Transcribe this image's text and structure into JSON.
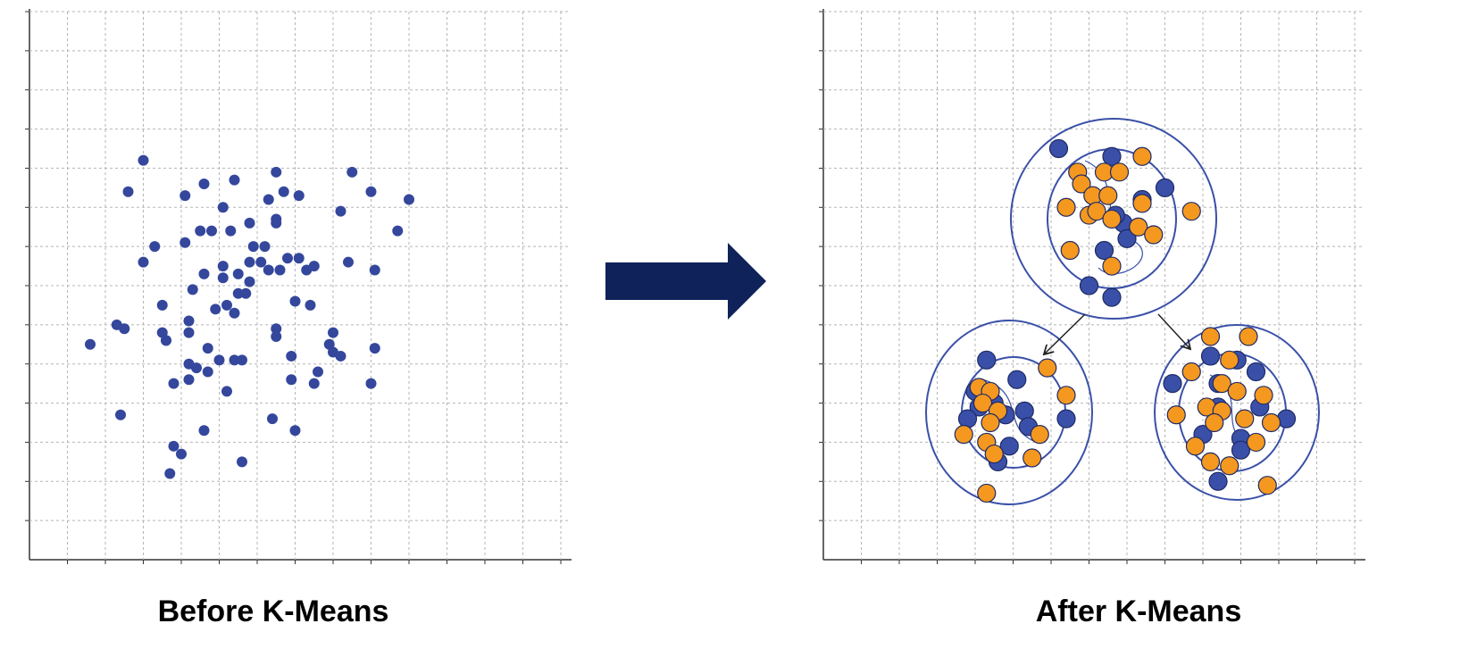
{
  "chart_data": [
    {
      "type": "scatter",
      "title": "Before K-Means",
      "xlim": [
        0,
        14
      ],
      "ylim": [
        0,
        14
      ],
      "grid": true,
      "series": [
        {
          "color": "#34479c",
          "x": [
            3.0,
            2.6,
            4.1,
            4.6,
            5.4,
            6.5,
            6.7,
            6.3,
            7.1,
            8.5,
            9.0,
            10.0,
            5.1,
            8.2,
            6.5,
            4.5,
            4.8,
            5.3,
            5.8,
            6.5,
            9.7,
            3.3,
            4.1,
            5.9,
            6.2,
            3.0,
            5.8,
            6.1,
            6.8,
            7.1,
            8.4,
            4.6,
            5.1,
            6.3,
            6.6,
            7.3,
            7.5,
            9.1,
            5.5,
            5.1,
            5.8,
            4.3,
            5.5,
            5.7,
            3.5,
            4.9,
            5.2,
            5.4,
            7.0,
            7.4,
            2.3,
            2.5,
            4.2,
            6.5,
            1.6,
            3.5,
            3.6,
            3.6,
            4.2,
            6.5,
            8.0,
            7.9,
            4.7,
            8.0,
            8.2,
            9.1,
            4.2,
            4.4,
            5.0,
            5.4,
            5.6,
            6.9,
            7.6,
            4.7,
            4.2,
            3.8,
            5.2,
            6.9,
            7.5,
            9.0,
            2.4,
            6.4,
            4.6,
            7.0,
            3.8,
            4.0,
            5.6,
            3.7
          ],
          "values": [
            10.2,
            9.4,
            9.3,
            9.6,
            9.7,
            9.9,
            9.4,
            9.2,
            9.3,
            9.9,
            9.4,
            9.2,
            9.0,
            8.9,
            8.7,
            8.4,
            8.4,
            8.4,
            8.6,
            8.6,
            8.4,
            8.0,
            8.1,
            8.0,
            8.0,
            7.6,
            7.6,
            7.6,
            7.7,
            7.7,
            7.6,
            7.3,
            7.5,
            7.4,
            7.4,
            7.4,
            7.5,
            7.4,
            7.3,
            7.2,
            7.1,
            6.9,
            6.8,
            6.8,
            6.5,
            6.4,
            6.5,
            6.3,
            6.6,
            6.5,
            6.0,
            5.9,
            6.1,
            5.9,
            5.5,
            5.8,
            5.6,
            5.6,
            5.8,
            5.7,
            5.8,
            5.5,
            5.4,
            5.3,
            5.2,
            5.4,
            5.0,
            4.9,
            5.1,
            5.1,
            5.1,
            5.2,
            4.8,
            4.8,
            4.6,
            4.5,
            4.3,
            4.6,
            4.5,
            4.5,
            3.7,
            3.6,
            3.3,
            3.3,
            2.9,
            2.7,
            2.5,
            2.2
          ]
        }
      ]
    },
    {
      "type": "scatter",
      "title": "After K-Means",
      "xlim": [
        0,
        14
      ],
      "ylim": [
        0,
        14
      ],
      "grid": true,
      "series": [
        {
          "color": "#3a50a8",
          "x": [
            6.2,
            7.6,
            9.0,
            7.9,
            8.0,
            7.4,
            7.0,
            7.6,
            8.4,
            7.7,
            4.3,
            5.1,
            4.0,
            4.1,
            4.8,
            5.3,
            6.4,
            5.4,
            4.9,
            4.6,
            3.8,
            4.5,
            10.2,
            10.9,
            11.4,
            9.2,
            10.4,
            11.5,
            12.2,
            11.0,
            10.4,
            11.0,
            10.4,
            10.0
          ],
          "values": [
            10.5,
            10.3,
            9.5,
            8.6,
            8.2,
            7.9,
            7.0,
            6.7,
            9.2,
            8.8,
            5.1,
            4.6,
            4.3,
            3.9,
            3.7,
            3.8,
            3.6,
            3.4,
            2.9,
            2.5,
            3.6,
            4.0,
            5.2,
            5.1,
            4.8,
            4.5,
            4.5,
            3.9,
            3.6,
            3.1,
            3.9,
            2.8,
            2.0,
            3.2
          ]
        },
        {
          "color": "#f5981f",
          "x": [
            6.7,
            6.8,
            7.4,
            7.8,
            8.4,
            7.1,
            7.5,
            7.0,
            7.2,
            7.6,
            8.3,
            8.7,
            9.7,
            6.4,
            6.5,
            7.6,
            8.4,
            5.9,
            4.1,
            4.4,
            4.2,
            4.6,
            4.4,
            3.7,
            5.7,
            4.3,
            5.5,
            4.5,
            4.3,
            6.4,
            10.2,
            11.2,
            9.7,
            10.7,
            10.5,
            10.9,
            11.6,
            10.1,
            10.5,
            10.3,
            11.1,
            9.3,
            11.8,
            9.8,
            10.2,
            10.7,
            11.7,
            11.4
          ],
          "values": [
            9.9,
            9.6,
            9.9,
            9.9,
            10.3,
            9.3,
            9.3,
            8.8,
            8.9,
            8.7,
            8.5,
            8.3,
            8.9,
            9.0,
            7.9,
            7.5,
            9.1,
            4.9,
            4.4,
            4.3,
            4.0,
            3.8,
            3.5,
            3.2,
            3.2,
            3.0,
            2.6,
            2.7,
            1.7,
            4.2,
            5.7,
            5.7,
            4.8,
            5.1,
            4.5,
            4.3,
            4.2,
            3.9,
            3.8,
            3.5,
            3.6,
            3.7,
            3.5,
            2.9,
            2.5,
            2.4,
            1.9,
            3.0
          ]
        }
      ]
    }
  ]
}
